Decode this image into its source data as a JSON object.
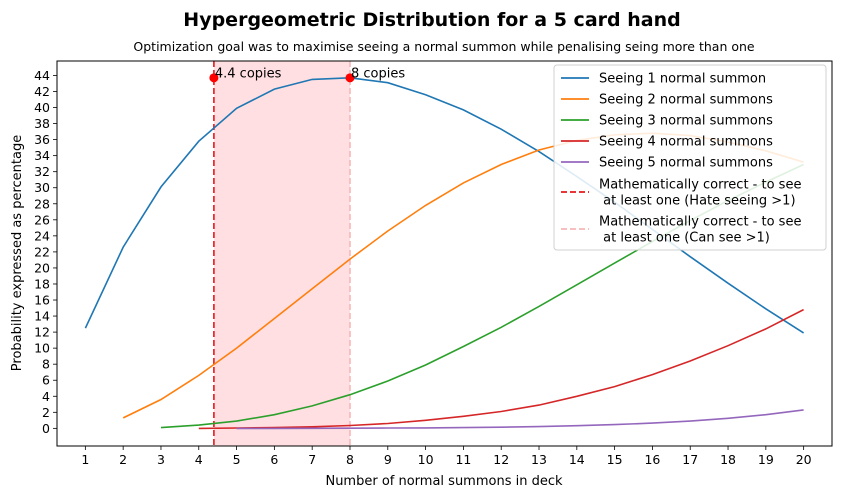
{
  "chart_data": {
    "type": "line",
    "title": "Hypergeometric Distribution for a 5 card hand",
    "subtitle": "Optimization goal was to maximise seeing a normal summon while penalising seing more than one",
    "xlabel": "Number of normal summons in deck",
    "ylabel": "Probability expressed as percentage",
    "xlim": [
      0.25,
      20.75
    ],
    "ylim": [
      -2.2,
      45.8
    ],
    "xticks": [
      1,
      2,
      3,
      4,
      5,
      6,
      7,
      8,
      9,
      10,
      11,
      12,
      13,
      14,
      15,
      16,
      17,
      18,
      19,
      20
    ],
    "yticks": [
      0,
      2,
      4,
      6,
      8,
      10,
      12,
      14,
      16,
      18,
      20,
      22,
      24,
      26,
      28,
      30,
      32,
      34,
      36,
      38,
      40,
      42,
      44
    ],
    "grid": false,
    "legend_position": "top-right",
    "series": [
      {
        "name": "Seeing 1 normal summon",
        "color": "#1f77b4",
        "x": [
          1,
          2,
          3,
          4,
          5,
          6,
          7,
          8,
          9,
          10,
          11,
          12,
          13,
          14,
          15,
          16,
          17,
          18,
          19,
          20
        ],
        "values": [
          12.5,
          22.6,
          30.1,
          35.8,
          39.9,
          42.3,
          43.5,
          43.7,
          43.1,
          41.6,
          39.7,
          37.3,
          34.5,
          31.4,
          28.2,
          24.8,
          21.4,
          18.1,
          14.9,
          11.9
        ]
      },
      {
        "name": "Seeing 2 normal summons",
        "color": "#ff7f0e",
        "x": [
          2,
          3,
          4,
          5,
          6,
          7,
          8,
          9,
          10,
          11,
          12,
          13,
          14,
          15,
          16,
          17,
          18,
          19,
          20
        ],
        "values": [
          1.3,
          3.6,
          6.6,
          10.0,
          13.7,
          17.4,
          21.1,
          24.6,
          27.8,
          30.6,
          32.9,
          34.7,
          35.9,
          36.6,
          36.8,
          36.5,
          35.7,
          34.6,
          33.2
        ]
      },
      {
        "name": "Seeing 3 normal summons",
        "color": "#2ca02c",
        "x": [
          3,
          4,
          5,
          6,
          7,
          8,
          9,
          10,
          11,
          12,
          13,
          14,
          15,
          16,
          17,
          18,
          19,
          20
        ],
        "values": [
          0.1,
          0.4,
          0.9,
          1.7,
          2.8,
          4.2,
          5.9,
          7.9,
          10.2,
          12.6,
          15.2,
          17.9,
          20.6,
          23.3,
          25.9,
          28.4,
          30.7,
          32.9
        ]
      },
      {
        "name": "Seeing 4 normal summons",
        "color": "#d62728",
        "x": [
          4,
          5,
          6,
          7,
          8,
          9,
          10,
          11,
          12,
          13,
          14,
          15,
          16,
          17,
          18,
          19,
          20
        ],
        "values": [
          0.0,
          0.05,
          0.1,
          0.2,
          0.35,
          0.6,
          1.0,
          1.5,
          2.1,
          2.9,
          4.0,
          5.2,
          6.7,
          8.4,
          10.3,
          12.4,
          14.8
        ]
      },
      {
        "name": "Seeing 5 normal summons",
        "color": "#9467bd",
        "x": [
          5,
          6,
          7,
          8,
          9,
          10,
          11,
          12,
          13,
          14,
          15,
          16,
          17,
          18,
          19,
          20
        ],
        "values": [
          0.0,
          0.0,
          0.01,
          0.02,
          0.04,
          0.06,
          0.1,
          0.15,
          0.22,
          0.33,
          0.47,
          0.66,
          0.9,
          1.25,
          1.7,
          2.3
        ]
      }
    ],
    "vlines": [
      {
        "name": "Mathematically correct - to see\n at least one (Hate seeing >1)",
        "x": 4.4,
        "color": "#e31a1c",
        "style": "dashed"
      },
      {
        "name": "Mathematically correct - to see\n at least one (Can see >1)",
        "x": 8,
        "color": "#f7b6b8",
        "style": "dashed"
      }
    ],
    "shaded_region": {
      "x_from": 4.4,
      "x_to": 8,
      "color": "#ffdfe1"
    },
    "markers": [
      {
        "x": 4.4,
        "y": 43.7,
        "label": "4.4 copies",
        "color": "#ff0000"
      },
      {
        "x": 8,
        "y": 43.7,
        "label": "8 copies",
        "color": "#ff0000"
      }
    ]
  }
}
